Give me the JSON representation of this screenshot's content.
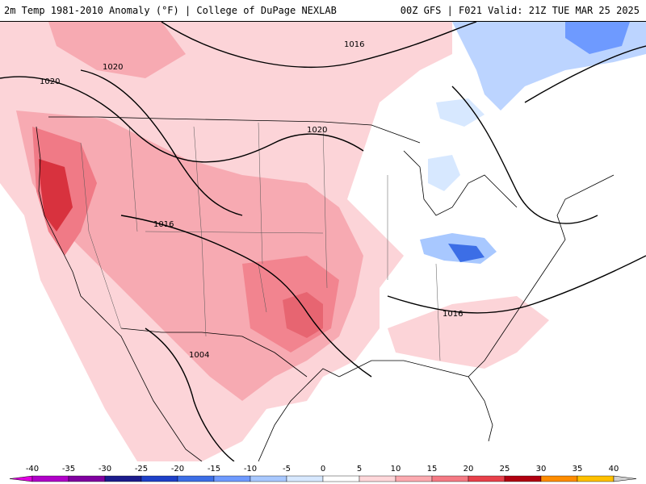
{
  "header": {
    "product_title": "2m Temp 1981-2010 Anomaly (°F) | College of DuPage NEXLAB",
    "valid_info": "00Z GFS | F021 Valid: 21Z TUE MAR 25 2025"
  },
  "map": {
    "pressure_labels": [
      "1016",
      "1020",
      "1020",
      "1020",
      "1016",
      "1004",
      "1016"
    ]
  },
  "legend": {
    "ticks": [
      "-40",
      "-35",
      "-30",
      "-25",
      "-20",
      "-15",
      "-10",
      "-5",
      "0",
      "5",
      "10",
      "15",
      "20",
      "25",
      "30",
      "35",
      "40"
    ],
    "colors": [
      "#e000e0",
      "#b000c8",
      "#8000a0",
      "#1c1c8c",
      "#1e40c8",
      "#3c6ee6",
      "#6e9aff",
      "#a8c8ff",
      "#d7e8ff",
      "#ffffff",
      "#ffd7da",
      "#fcaab0",
      "#f57a84",
      "#e8404a",
      "#b00010",
      "#ff8c00",
      "#ffc000",
      "#ffe000"
    ]
  }
}
